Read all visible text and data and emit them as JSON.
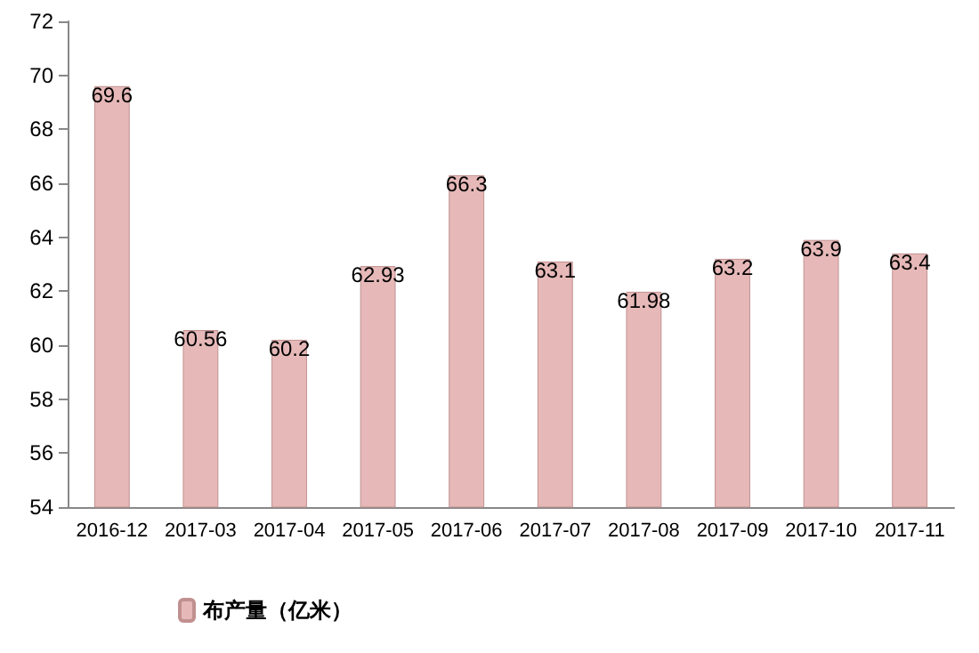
{
  "chart_data": {
    "type": "bar",
    "categories": [
      "2016-12",
      "2017-03",
      "2017-04",
      "2017-05",
      "2017-06",
      "2017-07",
      "2017-08",
      "2017-09",
      "2017-10",
      "2017-11"
    ],
    "series": [
      {
        "name": "布产量（亿米）",
        "color": "#e6b9b8",
        "values": [
          69.6,
          60.56,
          60.2,
          62.93,
          66.3,
          63.1,
          61.98,
          63.2,
          63.9,
          63.4
        ]
      }
    ],
    "ylim": [
      54,
      72
    ],
    "yticks": [
      54,
      56,
      58,
      60,
      62,
      64,
      66,
      68,
      70,
      72
    ],
    "data_labels": true,
    "legend": "bottom left",
    "grid": false
  }
}
